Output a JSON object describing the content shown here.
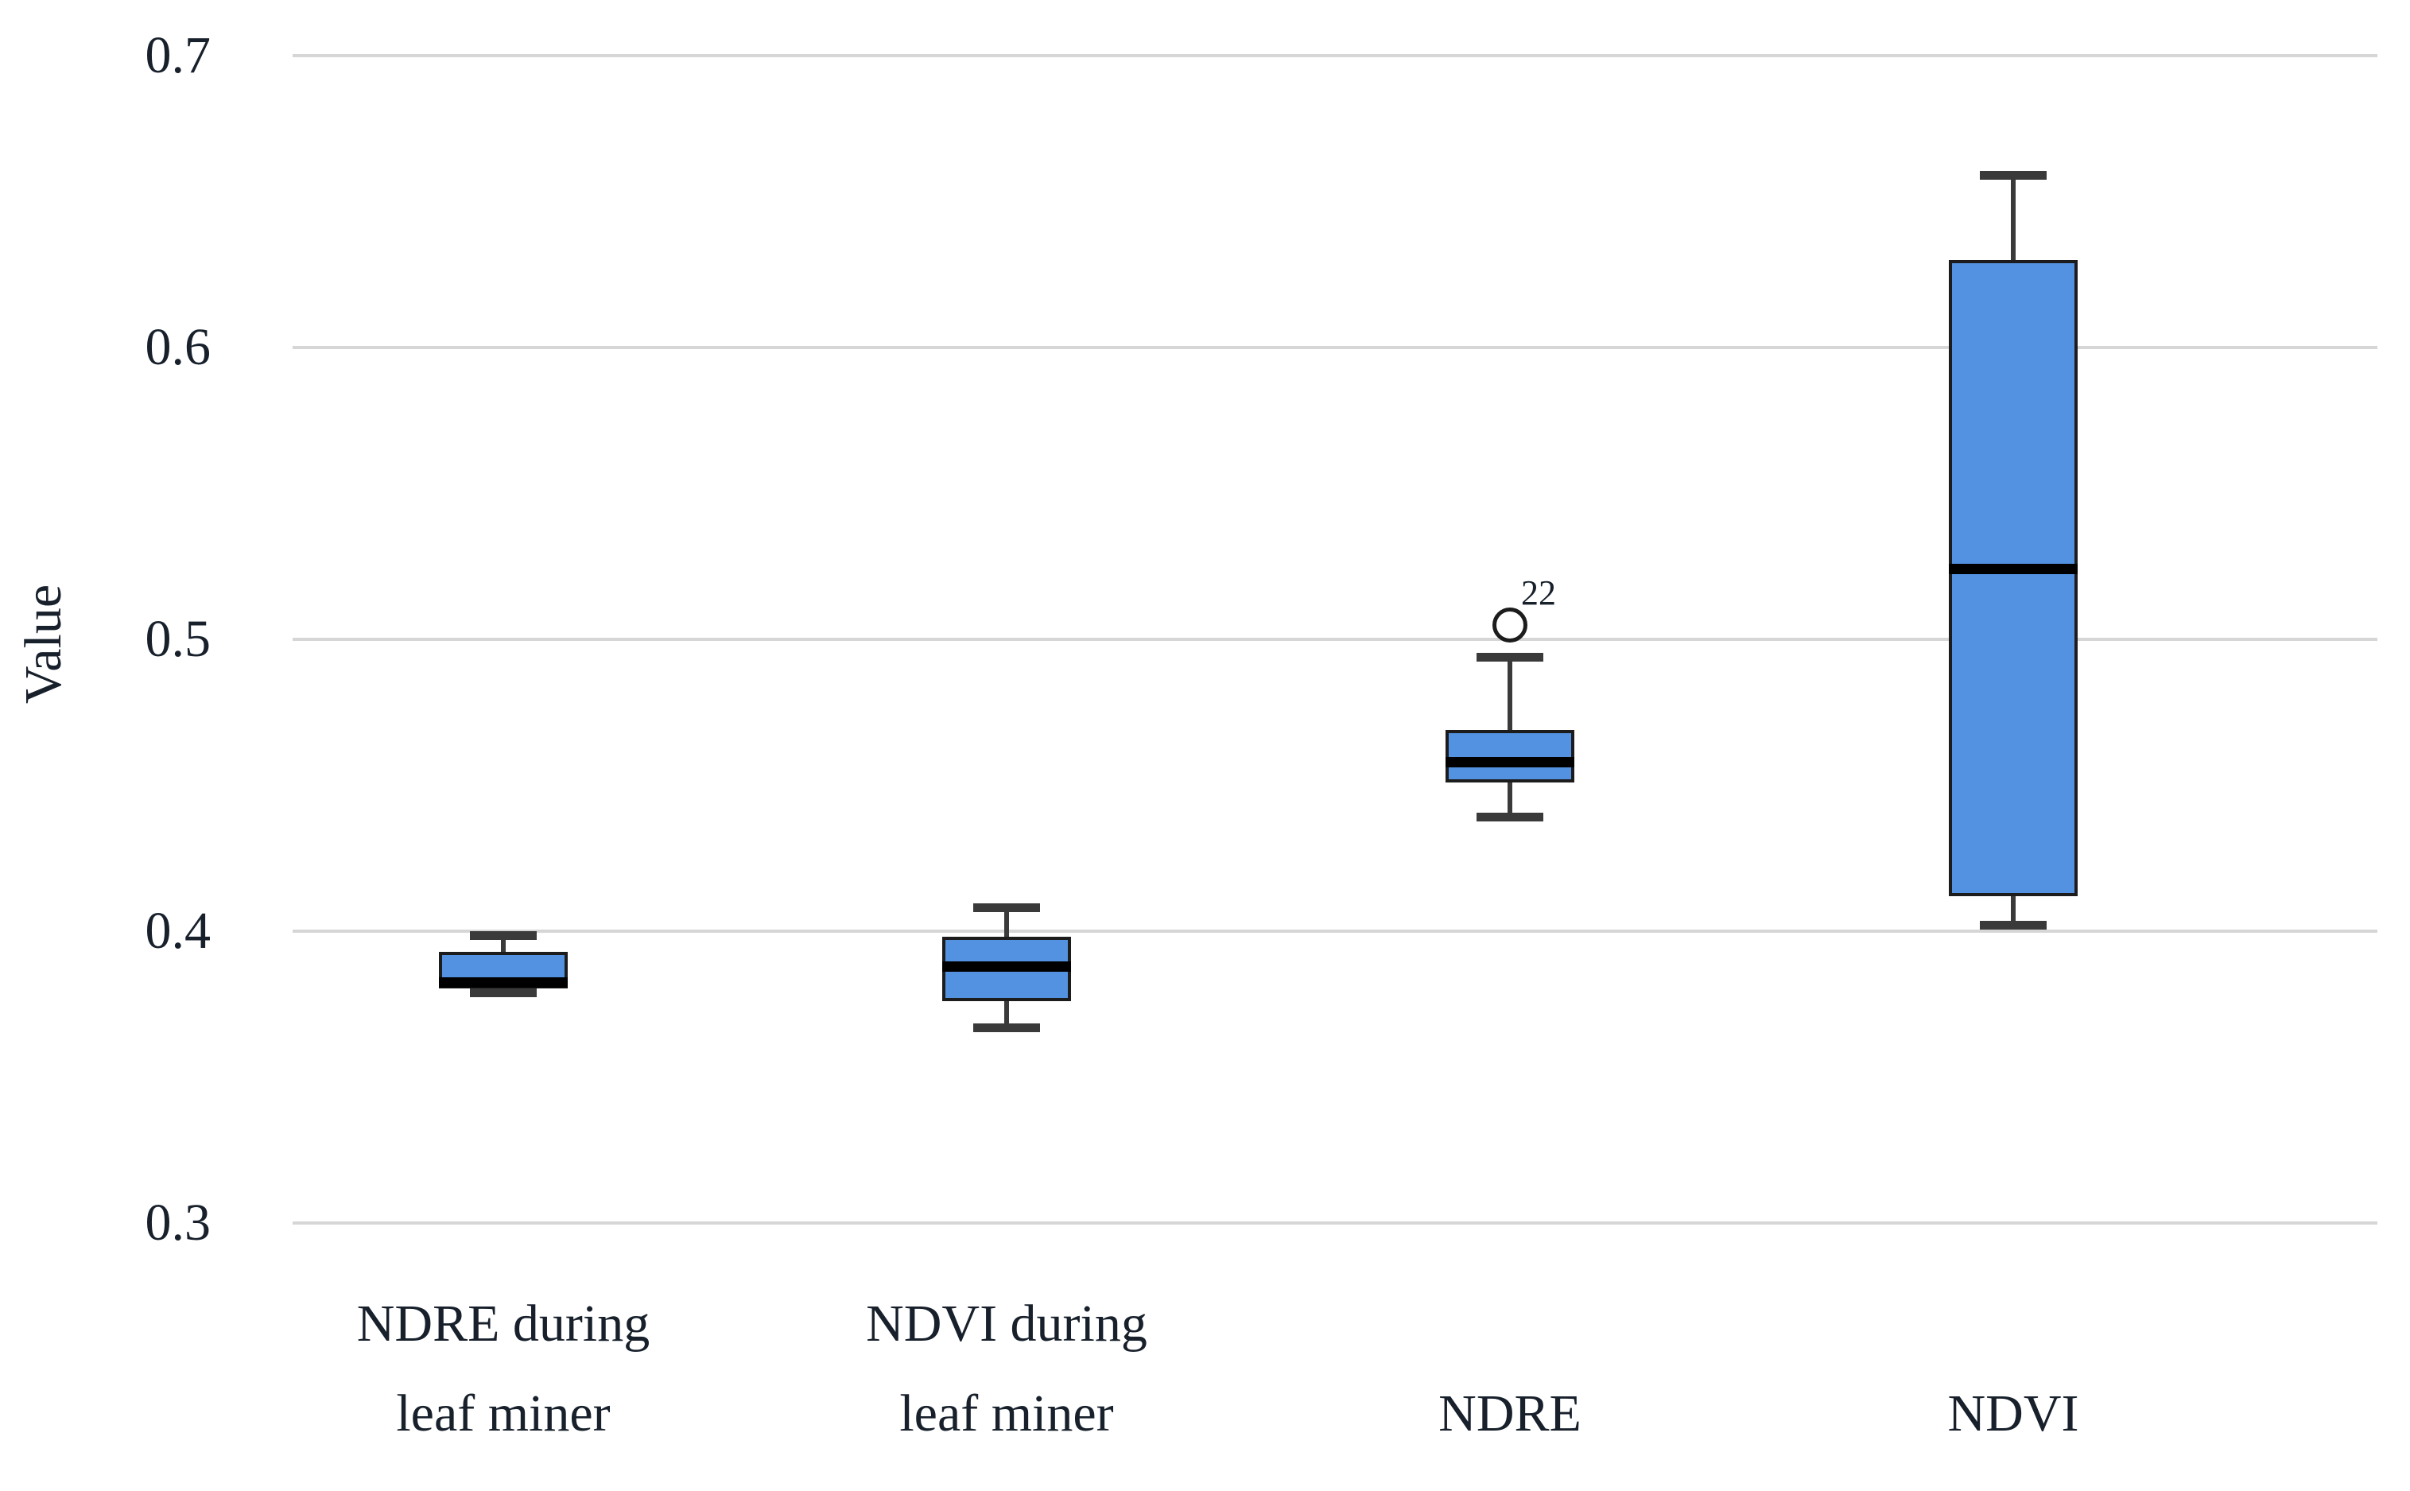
{
  "chart_data": {
    "type": "boxplot",
    "title": "",
    "xlabel": "",
    "ylabel": "Value",
    "ylim": [
      0.3,
      0.7
    ],
    "yticks": [
      0.7,
      0.6,
      0.5,
      0.4,
      0.3
    ],
    "ytick_labels": [
      "0.7",
      "0.6",
      "0.5",
      "0.4",
      "0.3"
    ],
    "grid": true,
    "legend": false,
    "categories": [
      "NDRE during leaf miner",
      "NDVI during leaf miner",
      "NDRE",
      "NDVI"
    ],
    "series": [
      {
        "name": "NDRE during leaf miner",
        "label_lines": [
          "NDRE during",
          "leaf miner"
        ],
        "whisker_low": 0.379,
        "q1": 0.3805,
        "median": 0.3825,
        "q3": 0.393,
        "whisker_high": 0.3985,
        "outliers": []
      },
      {
        "name": "NDVI during leaf miner",
        "label_lines": [
          "NDVI during",
          "leaf miner"
        ],
        "whisker_low": 0.367,
        "q1": 0.376,
        "median": 0.388,
        "q3": 0.398,
        "whisker_high": 0.408,
        "outliers": []
      },
      {
        "name": "NDRE",
        "label_lines": [
          "NDRE"
        ],
        "whisker_low": 0.439,
        "q1": 0.451,
        "median": 0.458,
        "q3": 0.469,
        "whisker_high": 0.494,
        "outliers": [
          {
            "value": 0.505,
            "label": "22"
          }
        ]
      },
      {
        "name": "NDVI",
        "label_lines": [
          "NDVI"
        ],
        "whisker_low": 0.402,
        "q1": 0.412,
        "median": 0.524,
        "q3": 0.63,
        "whisker_high": 0.659,
        "outliers": []
      }
    ],
    "colors": {
      "box_fill": "#5292e0",
      "box_border": "#1c1c1c",
      "median": "#000000",
      "whisker": "#3a3a3a",
      "gridline": "#d6d6d6",
      "text": "#17202b",
      "outlier_stroke": "#1c1c1c",
      "background": "#ffffff"
    }
  }
}
